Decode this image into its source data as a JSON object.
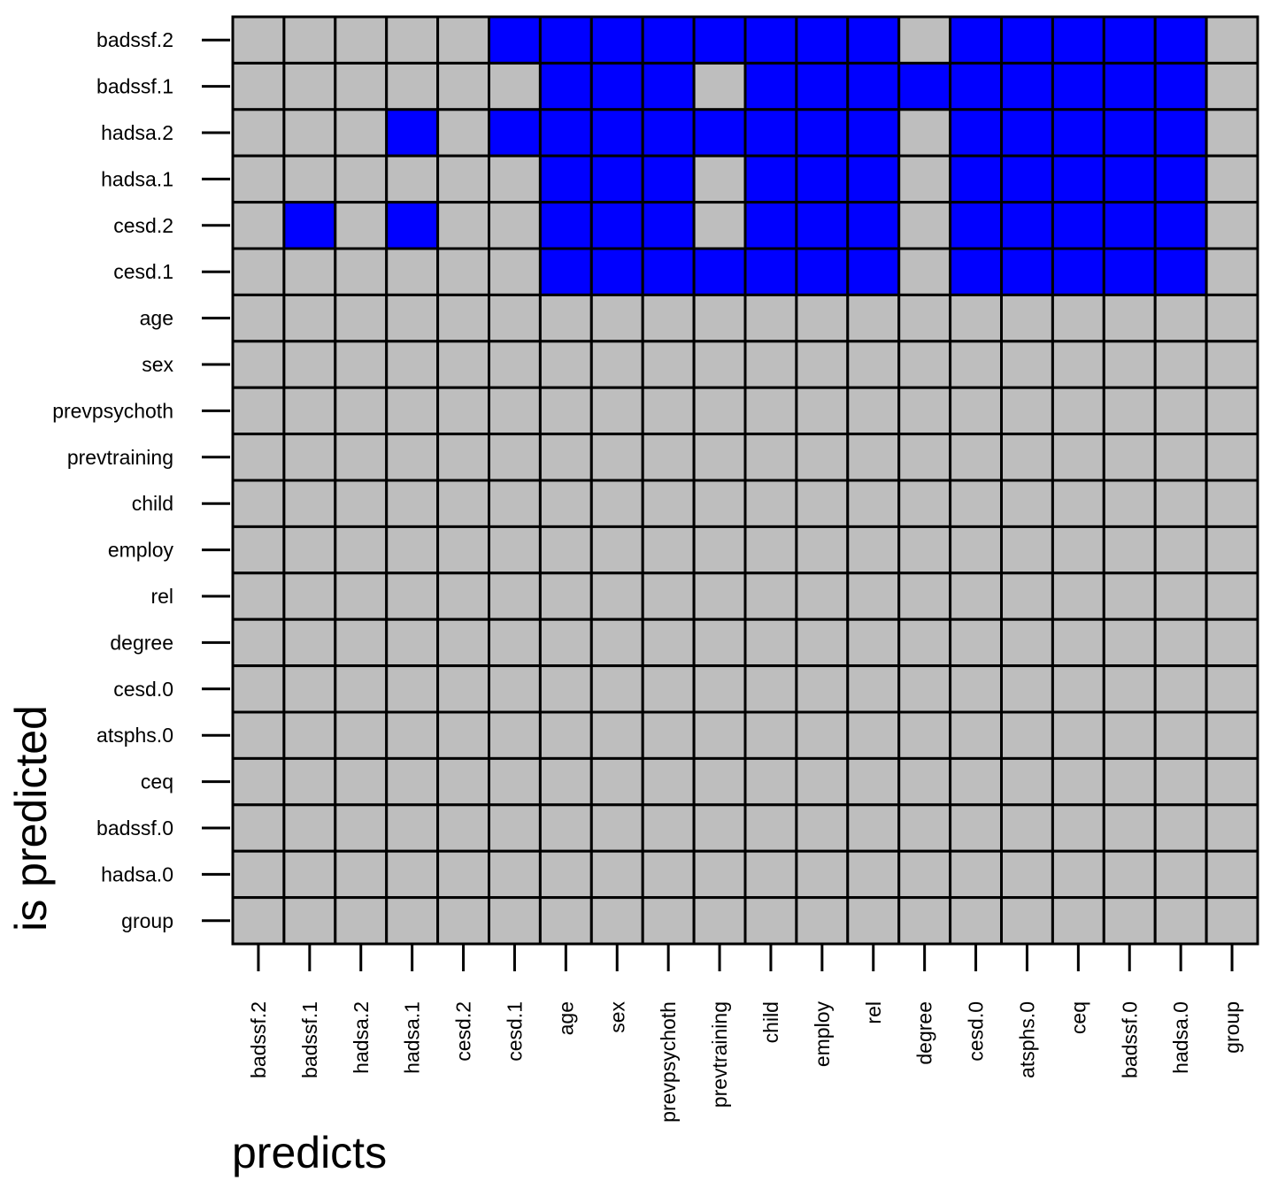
{
  "chart_data": {
    "type": "heatmap",
    "title": "",
    "xlabel": "predicts",
    "ylabel": "is predicted",
    "x_categories": [
      "badssf.2",
      "badssf.1",
      "hadsa.2",
      "hadsa.1",
      "cesd.2",
      "cesd.1",
      "age",
      "sex",
      "prevpsychoth",
      "prevtraining",
      "child",
      "employ",
      "rel",
      "degree",
      "cesd.0",
      "atsphs.0",
      "ceq",
      "badssf.0",
      "hadsa.0",
      "group"
    ],
    "y_categories": [
      "badssf.2",
      "badssf.1",
      "hadsa.2",
      "hadsa.1",
      "cesd.2",
      "cesd.1",
      "age",
      "sex",
      "prevpsychoth",
      "prevtraining",
      "child",
      "employ",
      "rel",
      "degree",
      "cesd.0",
      "atsphs.0",
      "ceq",
      "badssf.0",
      "hadsa.0",
      "group"
    ],
    "values": [
      [
        0,
        0,
        0,
        0,
        0,
        1,
        1,
        1,
        1,
        1,
        1,
        1,
        1,
        0,
        1,
        1,
        1,
        1,
        1,
        0
      ],
      [
        0,
        0,
        0,
        0,
        0,
        0,
        1,
        1,
        1,
        0,
        1,
        1,
        1,
        1,
        1,
        1,
        1,
        1,
        1,
        0
      ],
      [
        0,
        0,
        0,
        1,
        0,
        1,
        1,
        1,
        1,
        1,
        1,
        1,
        1,
        0,
        1,
        1,
        1,
        1,
        1,
        0
      ],
      [
        0,
        0,
        0,
        0,
        0,
        0,
        1,
        1,
        1,
        0,
        1,
        1,
        1,
        0,
        1,
        1,
        1,
        1,
        1,
        0
      ],
      [
        0,
        1,
        0,
        1,
        0,
        0,
        1,
        1,
        1,
        0,
        1,
        1,
        1,
        0,
        1,
        1,
        1,
        1,
        1,
        0
      ],
      [
        0,
        0,
        0,
        0,
        0,
        0,
        1,
        1,
        1,
        1,
        1,
        1,
        1,
        0,
        1,
        1,
        1,
        1,
        1,
        0
      ],
      [
        0,
        0,
        0,
        0,
        0,
        0,
        0,
        0,
        0,
        0,
        0,
        0,
        0,
        0,
        0,
        0,
        0,
        0,
        0,
        0
      ],
      [
        0,
        0,
        0,
        0,
        0,
        0,
        0,
        0,
        0,
        0,
        0,
        0,
        0,
        0,
        0,
        0,
        0,
        0,
        0,
        0
      ],
      [
        0,
        0,
        0,
        0,
        0,
        0,
        0,
        0,
        0,
        0,
        0,
        0,
        0,
        0,
        0,
        0,
        0,
        0,
        0,
        0
      ],
      [
        0,
        0,
        0,
        0,
        0,
        0,
        0,
        0,
        0,
        0,
        0,
        0,
        0,
        0,
        0,
        0,
        0,
        0,
        0,
        0
      ],
      [
        0,
        0,
        0,
        0,
        0,
        0,
        0,
        0,
        0,
        0,
        0,
        0,
        0,
        0,
        0,
        0,
        0,
        0,
        0,
        0
      ],
      [
        0,
        0,
        0,
        0,
        0,
        0,
        0,
        0,
        0,
        0,
        0,
        0,
        0,
        0,
        0,
        0,
        0,
        0,
        0,
        0
      ],
      [
        0,
        0,
        0,
        0,
        0,
        0,
        0,
        0,
        0,
        0,
        0,
        0,
        0,
        0,
        0,
        0,
        0,
        0,
        0,
        0
      ],
      [
        0,
        0,
        0,
        0,
        0,
        0,
        0,
        0,
        0,
        0,
        0,
        0,
        0,
        0,
        0,
        0,
        0,
        0,
        0,
        0
      ],
      [
        0,
        0,
        0,
        0,
        0,
        0,
        0,
        0,
        0,
        0,
        0,
        0,
        0,
        0,
        0,
        0,
        0,
        0,
        0,
        0
      ],
      [
        0,
        0,
        0,
        0,
        0,
        0,
        0,
        0,
        0,
        0,
        0,
        0,
        0,
        0,
        0,
        0,
        0,
        0,
        0,
        0
      ],
      [
        0,
        0,
        0,
        0,
        0,
        0,
        0,
        0,
        0,
        0,
        0,
        0,
        0,
        0,
        0,
        0,
        0,
        0,
        0,
        0
      ],
      [
        0,
        0,
        0,
        0,
        0,
        0,
        0,
        0,
        0,
        0,
        0,
        0,
        0,
        0,
        0,
        0,
        0,
        0,
        0,
        0
      ],
      [
        0,
        0,
        0,
        0,
        0,
        0,
        0,
        0,
        0,
        0,
        0,
        0,
        0,
        0,
        0,
        0,
        0,
        0,
        0,
        0
      ],
      [
        0,
        0,
        0,
        0,
        0,
        0,
        0,
        0,
        0,
        0,
        0,
        0,
        0,
        0,
        0,
        0,
        0,
        0,
        0,
        0
      ]
    ],
    "colors": {
      "1": "#0000ff",
      "0": "#bebebe",
      "border": "#000000"
    },
    "grid": false,
    "legend": "none"
  }
}
